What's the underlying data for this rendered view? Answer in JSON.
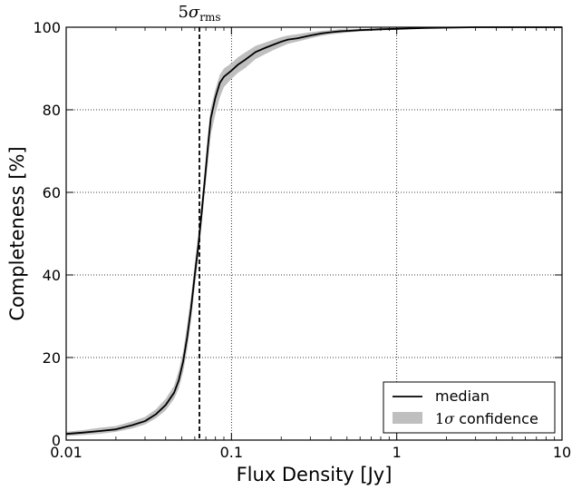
{
  "chart_data": {
    "type": "line",
    "title": "",
    "xlabel": "Flux Density [Jy]",
    "ylabel": "Completeness [%]",
    "x_scale": "log",
    "xlim": [
      0.01,
      10
    ],
    "ylim": [
      0,
      100
    ],
    "x_ticks": [
      0.01,
      0.1,
      1,
      10
    ],
    "x_tick_labels": [
      "0.01",
      "0.1",
      "1",
      "10"
    ],
    "y_ticks": [
      0,
      20,
      40,
      60,
      80,
      100
    ],
    "y_tick_labels": [
      "0",
      "20",
      "40",
      "60",
      "80",
      "100"
    ],
    "grid": true,
    "legend_position": "bottom-right",
    "series": [
      {
        "name": "median",
        "style": "line",
        "color": "#000000",
        "x": [
          0.01,
          0.0125,
          0.016,
          0.02,
          0.025,
          0.03,
          0.035,
          0.04,
          0.045,
          0.048,
          0.051,
          0.054,
          0.057,
          0.06,
          0.063,
          0.066,
          0.069,
          0.072,
          0.075,
          0.08,
          0.085,
          0.09,
          0.1,
          0.11,
          0.12,
          0.14,
          0.16,
          0.18,
          0.2,
          0.22,
          0.25,
          0.3,
          0.35,
          0.4,
          0.45,
          0.5,
          0.6,
          0.7,
          0.8,
          1.0,
          1.2,
          1.5,
          2.0,
          3.0,
          5.0,
          10.0
        ],
        "y": [
          1.5,
          1.8,
          2.2,
          2.6,
          3.6,
          4.6,
          6.3,
          8.5,
          11.5,
          14.5,
          19,
          25,
          32,
          40,
          47,
          55,
          63,
          71,
          78,
          83,
          86.5,
          88,
          89.5,
          91,
          92,
          94,
          95,
          95.8,
          96.5,
          97,
          97.3,
          98,
          98.5,
          98.8,
          99,
          99.1,
          99.3,
          99.4,
          99.5,
          99.6,
          99.7,
          99.8,
          99.9,
          100,
          100,
          100
        ]
      },
      {
        "name": "1σ confidence",
        "style": "band",
        "color": "#bfbfbf",
        "x": [
          0.01,
          0.0125,
          0.016,
          0.02,
          0.025,
          0.03,
          0.035,
          0.04,
          0.045,
          0.048,
          0.051,
          0.054,
          0.057,
          0.06,
          0.063,
          0.066,
          0.069,
          0.072,
          0.075,
          0.08,
          0.085,
          0.09,
          0.1,
          0.11,
          0.12,
          0.14,
          0.16,
          0.18,
          0.2,
          0.22,
          0.25,
          0.3,
          0.35,
          0.4,
          0.45,
          0.5,
          0.6,
          0.7,
          0.8,
          1.0,
          1.2,
          1.5,
          2.0,
          3.0,
          5.0,
          10.0
        ],
        "lower": [
          1.0,
          1.2,
          1.5,
          2.0,
          2.8,
          3.8,
          5.3,
          7.2,
          10.0,
          12.5,
          16.5,
          22,
          29,
          37,
          44,
          52,
          60,
          67,
          74,
          79,
          83,
          85.5,
          87.5,
          89,
          90,
          92.3,
          93.5,
          94.5,
          95.3,
          96,
          96.5,
          97.3,
          97.9,
          98.3,
          98.5,
          98.7,
          99.0,
          99.1,
          99.2,
          99.4,
          99.6,
          99.7,
          99.8,
          99.9,
          100,
          100
        ],
        "upper": [
          2.0,
          2.4,
          3.0,
          3.4,
          4.5,
          5.6,
          7.5,
          10.0,
          13.2,
          16.8,
          21.5,
          28,
          35,
          43,
          50,
          58,
          66,
          74,
          80.5,
          85,
          88.5,
          90,
          91.3,
          92.8,
          93.8,
          95.5,
          96.3,
          97,
          97.6,
          98,
          98.3,
          98.8,
          99.1,
          99.3,
          99.5,
          99.5,
          99.6,
          99.7,
          99.8,
          99.8,
          99.9,
          100,
          100,
          100,
          100,
          100
        ]
      }
    ],
    "annotations": [
      {
        "type": "vline",
        "x": 0.064,
        "style": "dashed",
        "color": "#000000",
        "label_base": "5",
        "label_symbol": "σ",
        "label_subscript": "rms"
      }
    ]
  }
}
